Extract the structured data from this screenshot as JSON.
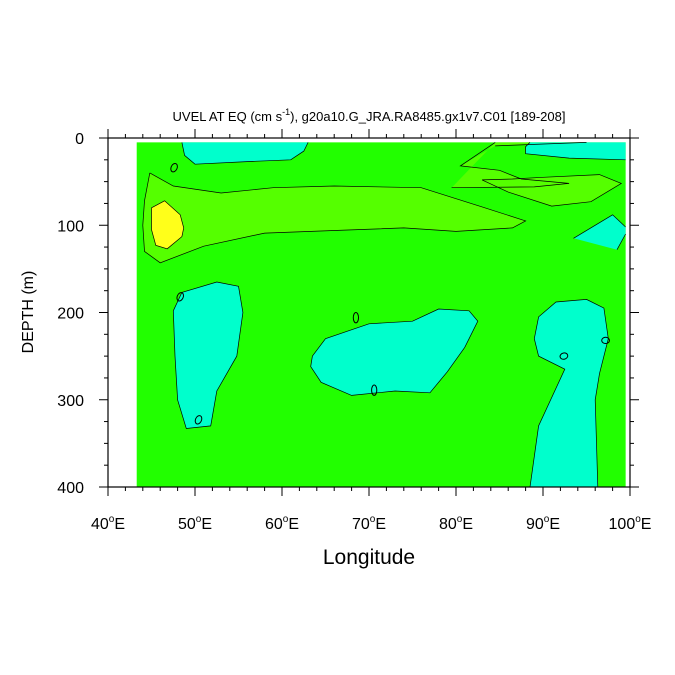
{
  "chart_data": {
    "type": "contour",
    "title_main": "UVEL AT EQ (cm s",
    "title_sup": "-1",
    "title_rest": "), g20a10.G_JRA.RA8485.gx1v7.C01 [189-208]",
    "xlabel": "Longitude",
    "ylabel": "DEPTH (m)",
    "xlim": [
      40,
      100
    ],
    "ylim": [
      400,
      0
    ],
    "x_ticks": [
      {
        "value": 40,
        "num": "40",
        "suffix": "E"
      },
      {
        "value": 50,
        "num": "50",
        "suffix": "E"
      },
      {
        "value": 60,
        "num": "60",
        "suffix": "E"
      },
      {
        "value": 70,
        "num": "70",
        "suffix": "E"
      },
      {
        "value": 80,
        "num": "80",
        "suffix": "E"
      },
      {
        "value": 90,
        "num": "90",
        "suffix": "E"
      },
      {
        "value": 100,
        "num": "100",
        "suffix": "E"
      }
    ],
    "y_ticks": [
      "0",
      "100",
      "200",
      "300",
      "400"
    ],
    "y_tick_values": [
      0,
      100,
      200,
      300,
      400
    ],
    "colors": {
      "background_level": "#22ff00",
      "weak_negative": "#00ffcc",
      "positive": "#55ff00",
      "strong_positive": "#ffff1a"
    },
    "data_extent": {
      "lon": [
        43.3,
        99.5
      ],
      "depth": [
        5,
        400
      ]
    },
    "filled_regions": [
      {
        "name": "surface-cyan-west",
        "level": "weak_negative",
        "points": [
          [
            48.5,
            5
          ],
          [
            63,
            5
          ],
          [
            62.5,
            15
          ],
          [
            61,
            25
          ],
          [
            56,
            27
          ],
          [
            50,
            30
          ],
          [
            48.8,
            20
          ]
        ]
      },
      {
        "name": "surface-green-mid",
        "level": "positive",
        "points": [
          [
            84.5,
            5
          ],
          [
            95,
            5
          ],
          [
            84.5,
            9
          ],
          [
            80.5,
            32
          ],
          [
            85,
            37
          ],
          [
            87.5,
            47
          ],
          [
            93,
            52
          ],
          [
            89,
            56
          ],
          [
            79.5,
            57
          ]
        ]
      },
      {
        "name": "surface-cyan-east",
        "level": "weak_negative",
        "points": [
          [
            88.5,
            5
          ],
          [
            99.5,
            5
          ],
          [
            99.5,
            25
          ],
          [
            93,
            23
          ],
          [
            88,
            18
          ],
          [
            88,
            10
          ]
        ]
      },
      {
        "name": "upper-jet",
        "level": "positive",
        "points": [
          [
            44.8,
            40
          ],
          [
            47.5,
            55
          ],
          [
            53,
            63
          ],
          [
            59,
            57
          ],
          [
            66,
            55
          ],
          [
            76,
            57
          ],
          [
            83,
            79
          ],
          [
            88,
            95
          ],
          [
            86.5,
            103
          ],
          [
            80,
            107
          ],
          [
            74,
            103
          ],
          [
            66,
            106
          ],
          [
            58,
            109
          ],
          [
            51,
            124
          ],
          [
            46,
            143
          ],
          [
            44.2,
            130
          ],
          [
            44,
            100
          ],
          [
            44.2,
            72
          ]
        ]
      },
      {
        "name": "jet-core",
        "level": "strong_positive",
        "points": [
          [
            45,
            80
          ],
          [
            46.5,
            72
          ],
          [
            48.3,
            88
          ],
          [
            48.7,
            103
          ],
          [
            48.5,
            113
          ],
          [
            46.8,
            127
          ],
          [
            45.5,
            123
          ],
          [
            45,
            105
          ]
        ]
      },
      {
        "name": "green-east-blob",
        "level": "positive",
        "points": [
          [
            86.5,
            47
          ],
          [
            90,
            45
          ],
          [
            96.5,
            42
          ],
          [
            99,
            52
          ],
          [
            95.5,
            73
          ],
          [
            91,
            78
          ],
          [
            86,
            62
          ],
          [
            83,
            48
          ]
        ]
      },
      {
        "name": "cyan-east-sliver",
        "level": "weak_negative",
        "points": [
          [
            93.5,
            115
          ],
          [
            98,
            88
          ],
          [
            99.5,
            102
          ],
          [
            99.5,
            110
          ],
          [
            98.5,
            128
          ]
        ]
      },
      {
        "name": "cyan-west-column",
        "level": "weak_negative",
        "points": [
          [
            47.5,
            198
          ],
          [
            48.5,
            177
          ],
          [
            52.5,
            165
          ],
          [
            55,
            170
          ],
          [
            55.5,
            200
          ],
          [
            54.8,
            250
          ],
          [
            52.5,
            290
          ],
          [
            51.8,
            330
          ],
          [
            49,
            333
          ],
          [
            48,
            300
          ],
          [
            47.7,
            250
          ]
        ]
      },
      {
        "name": "cyan-central-blob",
        "level": "weak_negative",
        "points": [
          [
            63.5,
            250
          ],
          [
            65,
            230
          ],
          [
            70,
            213
          ],
          [
            75,
            210
          ],
          [
            78,
            196
          ],
          [
            81.5,
            198
          ],
          [
            82.5,
            210
          ],
          [
            81,
            240
          ],
          [
            79,
            268
          ],
          [
            77,
            292
          ],
          [
            73,
            290
          ],
          [
            68,
            295
          ],
          [
            64.5,
            280
          ],
          [
            63.3,
            262
          ]
        ]
      },
      {
        "name": "cyan-east-column",
        "level": "weak_negative",
        "points": [
          [
            89,
            230
          ],
          [
            89.5,
            205
          ],
          [
            91.5,
            188
          ],
          [
            95,
            185
          ],
          [
            97,
            195
          ],
          [
            97.5,
            230
          ],
          [
            96.5,
            270
          ],
          [
            96,
            300
          ],
          [
            96.3,
            400
          ],
          [
            88.5,
            400
          ],
          [
            89.5,
            330
          ],
          [
            92.5,
            265
          ],
          [
            89.5,
            250
          ]
        ]
      }
    ],
    "contour_lines": [
      [
        [
          48.5,
          5
        ],
        [
          48.8,
          20
        ],
        [
          50,
          30
        ],
        [
          56,
          27
        ],
        [
          61,
          25
        ],
        [
          62.5,
          15
        ],
        [
          63,
          5
        ]
      ],
      [
        [
          84.5,
          5
        ],
        [
          80.5,
          32
        ],
        [
          85,
          37
        ],
        [
          87.5,
          47
        ],
        [
          93,
          52
        ],
        [
          89,
          56
        ],
        [
          79.5,
          57
        ]
      ],
      [
        [
          95,
          5
        ],
        [
          84.5,
          9
        ]
      ],
      [
        [
          88.5,
          5
        ],
        [
          88,
          10
        ],
        [
          88,
          18
        ],
        [
          93,
          23
        ],
        [
          99.5,
          25
        ]
      ],
      [
        [
          44.8,
          40
        ],
        [
          47.5,
          55
        ],
        [
          53,
          63
        ],
        [
          59,
          57
        ],
        [
          66,
          55
        ],
        [
          76,
          57
        ],
        [
          83,
          79
        ],
        [
          88,
          95
        ],
        [
          86.5,
          103
        ],
        [
          80,
          107
        ],
        [
          74,
          103
        ],
        [
          66,
          106
        ],
        [
          58,
          109
        ],
        [
          51,
          124
        ],
        [
          46,
          143
        ],
        [
          44.2,
          130
        ],
        [
          44,
          100
        ],
        [
          44.2,
          72
        ],
        [
          44.8,
          40
        ]
      ],
      [
        [
          45,
          80
        ],
        [
          46.5,
          72
        ],
        [
          48.3,
          88
        ],
        [
          48.7,
          103
        ],
        [
          48.5,
          113
        ],
        [
          46.8,
          127
        ],
        [
          45.5,
          123
        ],
        [
          45,
          105
        ],
        [
          45,
          80
        ]
      ],
      [
        [
          86.5,
          47
        ],
        [
          90,
          45
        ],
        [
          96.5,
          42
        ],
        [
          99,
          52
        ],
        [
          95.5,
          73
        ],
        [
          91,
          78
        ],
        [
          86,
          62
        ],
        [
          83,
          48
        ],
        [
          86.5,
          47
        ]
      ],
      [
        [
          93.5,
          115
        ],
        [
          98,
          88
        ],
        [
          99.5,
          102
        ]
      ],
      [
        [
          99.5,
          110
        ],
        [
          98.5,
          128
        ]
      ],
      [
        [
          47.5,
          198
        ],
        [
          48.5,
          177
        ],
        [
          52.5,
          165
        ],
        [
          55,
          170
        ],
        [
          55.5,
          200
        ],
        [
          54.8,
          250
        ],
        [
          52.5,
          290
        ],
        [
          51.8,
          330
        ],
        [
          49,
          333
        ],
        [
          48,
          300
        ],
        [
          47.7,
          250
        ],
        [
          47.5,
          198
        ]
      ],
      [
        [
          63.5,
          250
        ],
        [
          65,
          230
        ],
        [
          70,
          213
        ],
        [
          75,
          210
        ],
        [
          78,
          196
        ],
        [
          81.5,
          198
        ],
        [
          82.5,
          210
        ],
        [
          81,
          240
        ],
        [
          79,
          268
        ],
        [
          77,
          292
        ],
        [
          73,
          290
        ],
        [
          68,
          295
        ],
        [
          64.5,
          280
        ],
        [
          63.3,
          262
        ],
        [
          63.5,
          250
        ]
      ],
      [
        [
          88.5,
          400
        ],
        [
          89.5,
          330
        ],
        [
          92.5,
          265
        ],
        [
          89.5,
          250
        ],
        [
          89,
          230
        ],
        [
          89.5,
          205
        ],
        [
          91.5,
          188
        ],
        [
          95,
          185
        ],
        [
          97,
          195
        ],
        [
          97.5,
          230
        ],
        [
          96.5,
          270
        ],
        [
          96,
          300
        ],
        [
          96.3,
          400
        ]
      ]
    ],
    "small_ellipses": [
      {
        "lon": 47.6,
        "depth": 34,
        "rlon": 0.35,
        "rdepth": 5,
        "rot": 25
      },
      {
        "lon": 48.3,
        "depth": 182,
        "rlon": 0.35,
        "rdepth": 5,
        "rot": 25
      },
      {
        "lon": 50.4,
        "depth": 323,
        "rlon": 0.35,
        "rdepth": 5,
        "rot": 25
      },
      {
        "lon": 68.5,
        "depth": 206,
        "rlon": 0.3,
        "rdepth": 6,
        "rot": 0
      },
      {
        "lon": 70.6,
        "depth": 289,
        "rlon": 0.3,
        "rdepth": 6,
        "rot": 0
      },
      {
        "lon": 92.4,
        "depth": 250,
        "rlon": 0.45,
        "rdepth": 3.5,
        "rot": -15
      },
      {
        "lon": 97.2,
        "depth": 232,
        "rlon": 0.45,
        "rdepth": 3.5,
        "rot": 0
      }
    ]
  }
}
